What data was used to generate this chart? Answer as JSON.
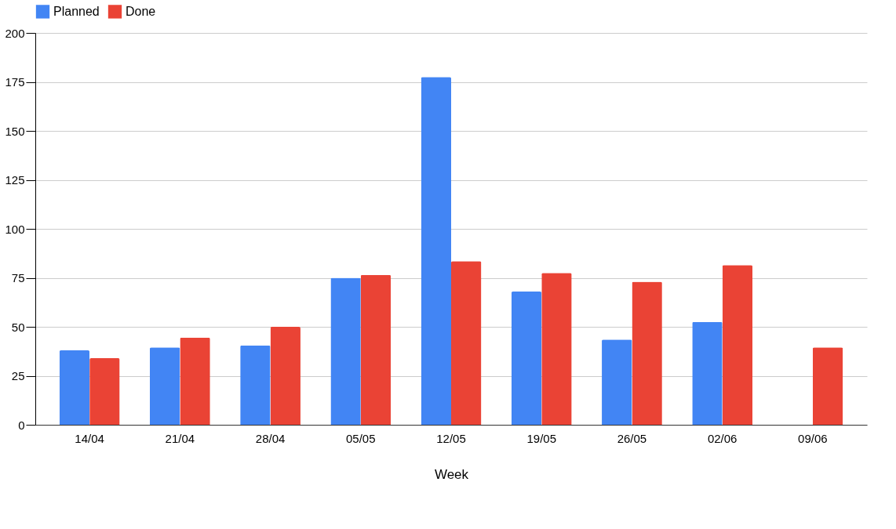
{
  "chart_data": {
    "type": "bar",
    "xlabel": "Week",
    "categories": [
      "14/04",
      "21/04",
      "28/04",
      "05/05",
      "12/05",
      "19/05",
      "26/05",
      "02/06",
      "09/06"
    ],
    "series": [
      {
        "name": "Planned",
        "color": "#4285f4",
        "values": [
          38,
          39.5,
          40.5,
          75,
          177.5,
          68,
          43.5,
          52.5,
          null
        ]
      },
      {
        "name": "Done",
        "color": "#ea4335",
        "values": [
          34,
          44.5,
          50,
          76.5,
          83.5,
          77.5,
          73,
          81.5,
          39.5
        ]
      }
    ],
    "ylim": [
      0,
      200
    ],
    "yticks": [
      0,
      25,
      50,
      75,
      100,
      125,
      150,
      175,
      200
    ],
    "grid": "y",
    "legend": "top"
  }
}
